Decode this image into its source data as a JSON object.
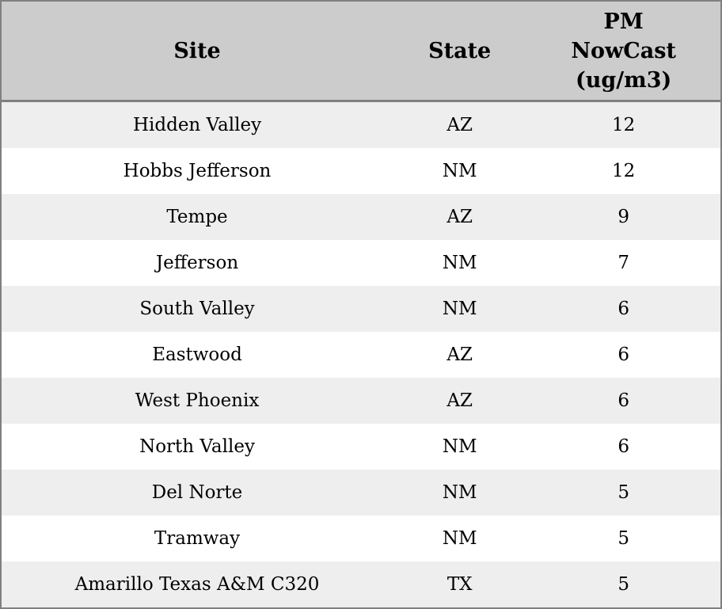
{
  "chart_data": {
    "type": "table",
    "columns": [
      {
        "key": "site",
        "label": "Site"
      },
      {
        "key": "state",
        "label": "State"
      },
      {
        "key": "pm",
        "label": "PM NowCast (ug/m3)"
      }
    ],
    "rows": [
      {
        "site": "Hidden Valley",
        "state": "AZ",
        "pm": "12"
      },
      {
        "site": "Hobbs Jefferson",
        "state": "NM",
        "pm": "12"
      },
      {
        "site": "Tempe",
        "state": "AZ",
        "pm": "9"
      },
      {
        "site": "Jefferson",
        "state": "NM",
        "pm": "7"
      },
      {
        "site": "South Valley",
        "state": "NM",
        "pm": "6"
      },
      {
        "site": "Eastwood",
        "state": "AZ",
        "pm": "6"
      },
      {
        "site": "West Phoenix",
        "state": "AZ",
        "pm": "6"
      },
      {
        "site": "North Valley",
        "state": "NM",
        "pm": "6"
      },
      {
        "site": "Del Norte",
        "state": "NM",
        "pm": "5"
      },
      {
        "site": "Tramway",
        "state": "NM",
        "pm": "5"
      },
      {
        "site": "Amarillo Texas A&M C320",
        "state": "TX",
        "pm": "5"
      }
    ]
  },
  "colors": {
    "header_bg": "#cccccc",
    "row_odd_bg": "#eeeeee",
    "row_even_bg": "#ffffff",
    "border": "#808080",
    "text": "#000000"
  }
}
